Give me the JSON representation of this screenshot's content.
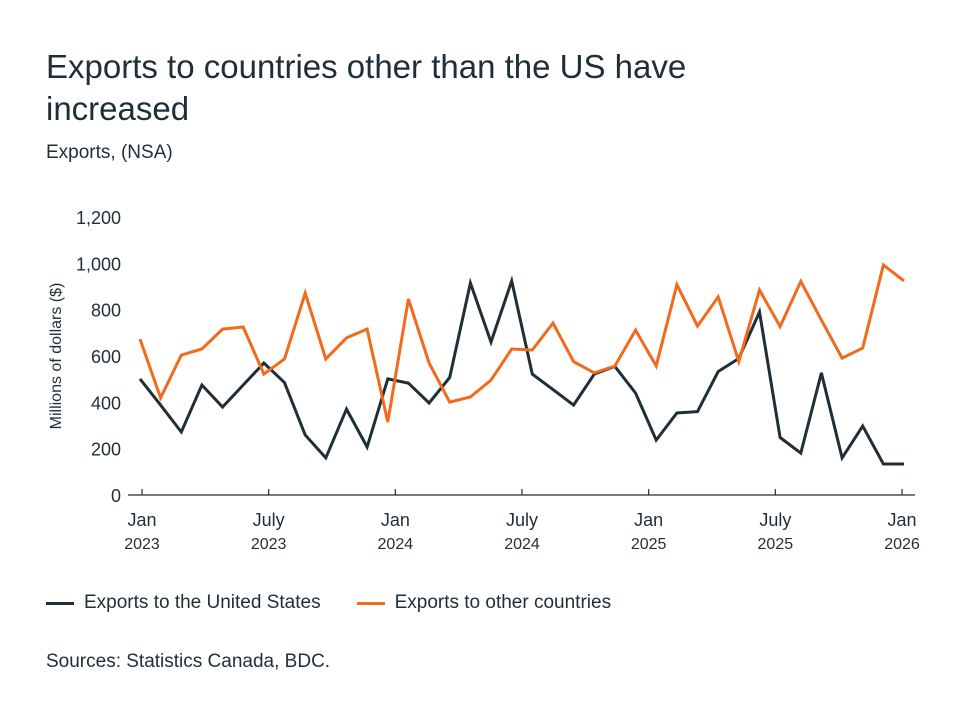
{
  "header": {
    "title": "Exports to countries other than the US have increased",
    "subtitle": "Exports, (NSA)"
  },
  "footer": {
    "source": "Sources: Statistics Canada, BDC."
  },
  "chart_data": {
    "type": "line",
    "title": "Exports to countries other than the US have increased",
    "subtitle": "Exports, (NSA)",
    "xlabel": "",
    "ylabel": "Millions of dollars ($)",
    "ylim": [
      0,
      1200
    ],
    "yticks": [
      0,
      200,
      400,
      600,
      800,
      1000,
      1200
    ],
    "ytick_labels": [
      "0",
      "200",
      "400",
      "600",
      "800",
      "1,000",
      "1,200"
    ],
    "grid": false,
    "legend_position": "bottom-left",
    "x": [
      "2023-01",
      "2023-02",
      "2023-03",
      "2023-04",
      "2023-05",
      "2023-06",
      "2023-07",
      "2023-08",
      "2023-09",
      "2023-10",
      "2023-11",
      "2023-12",
      "2024-01",
      "2024-02",
      "2024-03",
      "2024-04",
      "2024-05",
      "2024-06",
      "2024-07",
      "2024-08",
      "2024-09",
      "2024-10",
      "2024-11",
      "2024-12",
      "2025-01",
      "2025-02",
      "2025-03",
      "2025-04",
      "2025-05",
      "2025-06",
      "2025-07",
      "2025-08",
      "2025-09",
      "2025-10",
      "2025-11",
      "2025-12",
      "2026-01",
      "2026-02"
    ],
    "xticks": [
      {
        "month": "Jan",
        "year": "2023"
      },
      {
        "month": "July",
        "year": "2023"
      },
      {
        "month": "Jan",
        "year": "2024"
      },
      {
        "month": "July",
        "year": "2024"
      },
      {
        "month": "Jan",
        "year": "2025"
      },
      {
        "month": "July",
        "year": "2025"
      },
      {
        "month": "Jan",
        "year": "2026"
      }
    ],
    "series": [
      {
        "name": "Exports to the United States",
        "color": "#1f2f38",
        "values": [
          501,
          388,
          272,
          475,
          380,
          475,
          570,
          485,
          259,
          160,
          371,
          207,
          501,
          483,
          397,
          507,
          915,
          660,
          924,
          522,
          455,
          388,
          522,
          555,
          440,
          237,
          354,
          360,
          533,
          589,
          790,
          248,
          181,
          527,
          160,
          298,
          134,
          134
        ]
      },
      {
        "name": "Exports to other countries",
        "color": "#f26a1b",
        "values": [
          673,
          419,
          604,
          630,
          716,
          725,
          522,
          587,
          872,
          587,
          678,
          716,
          315,
          846,
          570,
          401,
          423,
          496,
          630,
          626,
          742,
          576,
          527,
          557,
          712,
          557,
          908,
          729,
          855,
          576,
          885,
          727,
          922,
          755,
          591,
          634,
          993,
          924
        ]
      }
    ]
  }
}
